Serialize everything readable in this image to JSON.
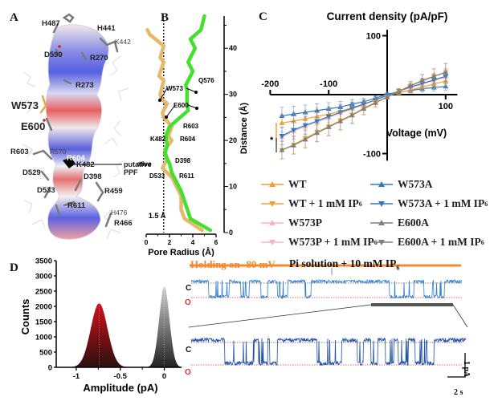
{
  "panels": {
    "A": {
      "label": "A",
      "residues": [
        {
          "name": "H487"
        },
        {
          "name": "H441"
        },
        {
          "name": "K442"
        },
        {
          "name": "D590"
        },
        {
          "name": "R270"
        },
        {
          "name": "R273"
        },
        {
          "name": "W573"
        },
        {
          "name": "E600"
        },
        {
          "name": "R603"
        },
        {
          "name": "R570"
        },
        {
          "name": "R604"
        },
        {
          "name": "K482"
        },
        {
          "name": "D529"
        },
        {
          "name": "D398"
        },
        {
          "name": "D533"
        },
        {
          "name": "R459"
        },
        {
          "name": "R611"
        },
        {
          "name": "H476"
        },
        {
          "name": "R466"
        }
      ],
      "annotation_line1": "putative",
      "annotation_line2": "PPF"
    },
    "B": {
      "label": "B",
      "threshold_label": "1.5 Å"
    },
    "C": {
      "label": "C",
      "legend": [
        {
          "name": "WT",
          "color": "#F0A030",
          "marker": "up"
        },
        {
          "name": "W573A",
          "color": "#2E78C2",
          "marker": "up"
        },
        {
          "name": "WT + 1 mM IP",
          "sub": "6",
          "color": "#F0A030",
          "marker": "down"
        },
        {
          "name": "W573A + 1 mM IP",
          "sub": "6",
          "color": "#2E78C2",
          "marker": "down"
        },
        {
          "name": "W573P",
          "color": "#F2B5D0",
          "marker": "up"
        },
        {
          "name": "E600A",
          "color": "#7F7F7F",
          "marker": "up"
        },
        {
          "name": "W573P + 1 mM IP",
          "sub": "6",
          "color": "#F2B5D0",
          "marker": "down"
        },
        {
          "name": "E600A + 1 mM IP",
          "sub": "6",
          "color": "#7F7F7F",
          "marker": "down"
        }
      ],
      "significance": "*"
    },
    "D": {
      "label": "D",
      "holding_label": "Holding on -80 mV",
      "solution_label": "Pi solution + 10 mM IP",
      "solution_sub": "6",
      "closed_label": "C",
      "open_label": "O",
      "scale_y": "1 pA",
      "scale_x": "2 s",
      "colors": {
        "holding": "#F08A30",
        "trace_top": "#2F7FC8",
        "trace_bottom": "#1F4FA8",
        "closed_line": "#555555",
        "open_line": "#E03030"
      }
    }
  },
  "chart_data": [
    {
      "type": "line",
      "id": "pore-radius",
      "title": "",
      "xlabel": "Pore Radius (Å)",
      "ylabel": "Distance (Å)",
      "xlim": [
        0,
        6
      ],
      "ylim": [
        0,
        47
      ],
      "xticks": [
        "0",
        "2",
        "4",
        "6"
      ],
      "yticks": [
        "0",
        "10",
        "20",
        "30",
        "40"
      ],
      "threshold_x": 1.5,
      "series": [
        {
          "name": "closed",
          "color": "#E8B86A",
          "points": [
            [
              0.1,
              44
            ],
            [
              0.3,
              43
            ],
            [
              1.5,
              40.5
            ],
            [
              1.2,
              38
            ],
            [
              1.5,
              37
            ],
            [
              1.1,
              34
            ],
            [
              1.5,
              33
            ],
            [
              1.2,
              30
            ],
            [
              1.3,
              29
            ],
            [
              1.8,
              28
            ],
            [
              1.4,
              26
            ],
            [
              1.5,
              25
            ],
            [
              2.2,
              23
            ],
            [
              1.9,
              21
            ],
            [
              2.2,
              20
            ],
            [
              1.6,
              18
            ],
            [
              1.8,
              16
            ],
            [
              1.4,
              14
            ],
            [
              2.2,
              12
            ],
            [
              3.0,
              8
            ],
            [
              3.0,
              5
            ],
            [
              3.3,
              3
            ],
            [
              4.5,
              1
            ],
            [
              4.8,
              0.5
            ]
          ]
        },
        {
          "name": "open",
          "color": "#44E030",
          "points": [
            [
              5.0,
              47
            ],
            [
              4.7,
              44
            ],
            [
              3.8,
              42
            ],
            [
              4.2,
              40
            ],
            [
              3.6,
              37
            ],
            [
              4.0,
              35
            ],
            [
              3.4,
              32
            ],
            [
              3.5,
              31
            ],
            [
              3.5,
              28
            ],
            [
              3.6,
              26.5
            ],
            [
              2.0,
              23
            ],
            [
              1.7,
              21
            ],
            [
              1.8,
              19
            ],
            [
              1.6,
              17
            ],
            [
              2.0,
              15
            ],
            [
              2.2,
              13
            ],
            [
              3.0,
              9
            ],
            [
              3.4,
              6
            ],
            [
              3.8,
              3
            ],
            [
              5.5,
              0.5
            ]
          ]
        }
      ],
      "annotations": [
        {
          "text": "W573"
        },
        {
          "text": "Q576"
        },
        {
          "text": "E600"
        },
        {
          "text": "R603"
        },
        {
          "text": "K482"
        },
        {
          "text": "R604"
        },
        {
          "text": "D398"
        },
        {
          "text": "D533"
        },
        {
          "text": "R611"
        },
        {
          "text": "putative"
        }
      ]
    },
    {
      "type": "line",
      "id": "iv-curve",
      "title": "Current density (pA/pF)",
      "xlabel": "Voltage (mV)",
      "ylabel": "Current density (pA/pF)",
      "xlim": [
        -200,
        100
      ],
      "ylim": [
        -100,
        100
      ],
      "xticks": [
        "-200",
        "-100",
        "100"
      ],
      "yticks": [
        "100",
        "-100"
      ],
      "x": [
        -180,
        -160,
        -140,
        -120,
        -100,
        -80,
        -60,
        -40,
        -20,
        0,
        20,
        40,
        60,
        80,
        100
      ],
      "series": [
        {
          "name": "W573A",
          "color": "#2E78C2",
          "marker": "up",
          "values": [
            -36,
            -33,
            -30,
            -27,
            -24,
            -21,
            -16,
            -12,
            -6,
            1,
            4,
            7,
            10,
            12,
            14
          ]
        },
        {
          "name": "WT",
          "color": "#F0A030",
          "marker": "up",
          "values": [
            -48,
            -45,
            -41,
            -37,
            -33,
            -28,
            -22,
            -16,
            -9,
            -2,
            3,
            8,
            13,
            18,
            23
          ]
        },
        {
          "name": "W573P",
          "color": "#F2B5D0",
          "marker": "up",
          "values": [
            -72,
            -62,
            -54,
            -46,
            -39,
            -31,
            -24,
            -17,
            -9,
            -2,
            6,
            12,
            18,
            24,
            30
          ]
        },
        {
          "name": "W573A + 1 mM IP6",
          "color": "#2E78C2",
          "marker": "down",
          "values": [
            -70,
            -60,
            -52,
            -45,
            -37,
            -30,
            -23,
            -16,
            -9,
            -1,
            6,
            13,
            19,
            25,
            31
          ]
        },
        {
          "name": "WT + 1 mM IP6",
          "color": "#F0A030",
          "marker": "down",
          "values": [
            -94,
            -85,
            -74,
            -64,
            -54,
            -44,
            -34,
            -23,
            -13,
            -4,
            6,
            15,
            23,
            31,
            38
          ]
        },
        {
          "name": "E600A",
          "color": "#7F7F7F",
          "marker": "up",
          "values": [
            -94,
            -86,
            -76,
            -65,
            -55,
            -45,
            -35,
            -24,
            -14,
            -4,
            5,
            15,
            24,
            31,
            38
          ]
        }
      ],
      "error_bar": 15
    },
    {
      "type": "area",
      "id": "amplitude-histogram",
      "xlabel": "Amplitude (pA)",
      "ylabel": "Counts",
      "xlim": [
        -1.2,
        0.15
      ],
      "ylim": [
        0,
        3500
      ],
      "xticks": [
        "-1",
        "-0.5",
        "0"
      ],
      "yticks": [
        "0",
        "500",
        "1000",
        "1500",
        "2000",
        "2500",
        "3000",
        "3500"
      ],
      "series": [
        {
          "name": "open",
          "center": -0.74,
          "sigma": 0.095,
          "peak": 2100,
          "color_top": "#D0101A",
          "color_bottom": "#2A1010"
        },
        {
          "name": "closed",
          "center": 0.0,
          "sigma": 0.058,
          "peak": 2650,
          "color_top": "#CFCFCF",
          "color_bottom": "#222222"
        }
      ]
    }
  ]
}
